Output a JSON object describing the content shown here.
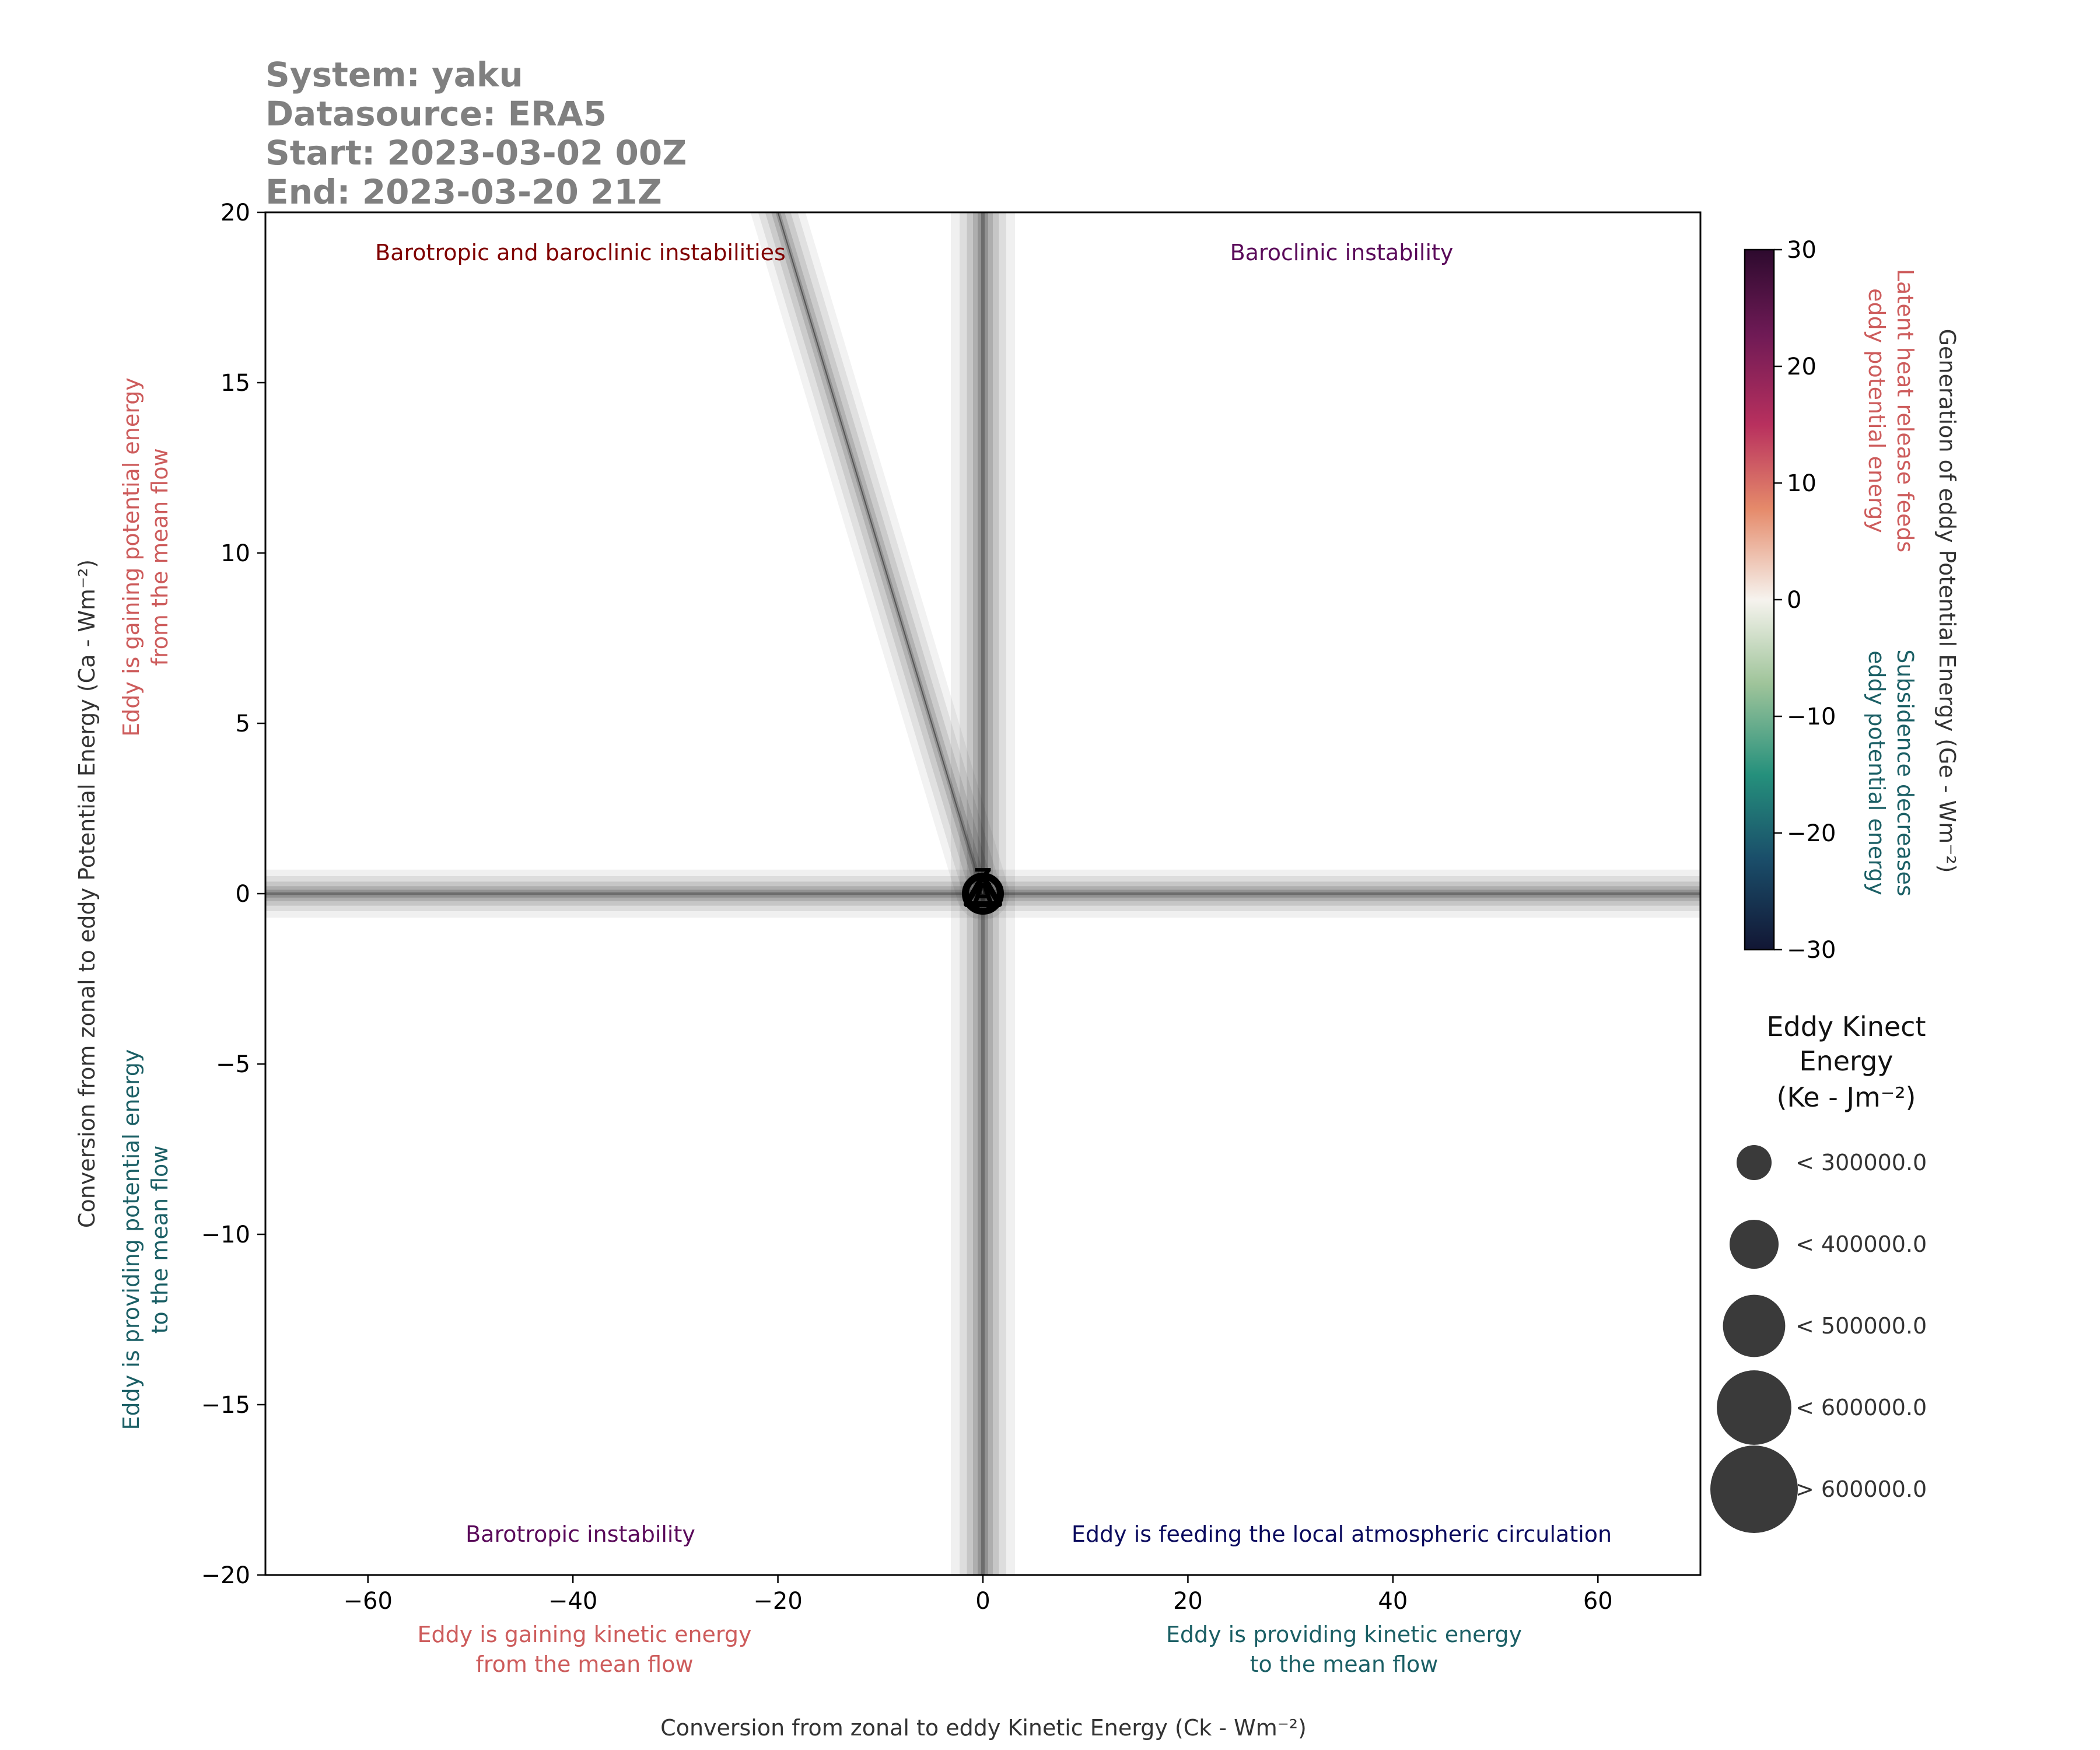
{
  "header": {
    "lines": [
      "System: yaku",
      "Datasource: ERA5",
      "Start: 2023-03-02 00Z",
      "End: 2023-03-20 21Z"
    ]
  },
  "quadrants": {
    "top_left": "Barotropic and baroclinic instabilities",
    "top_right": "Baroclinic instability",
    "bottom_left": "Barotropic instability",
    "bottom_right": "Eddy is feeding the local atmospheric circulation"
  },
  "axis_notes": {
    "x_left": [
      "Eddy is gaining kinetic energy",
      "from the mean flow"
    ],
    "x_right": [
      "Eddy is providing kinetic energy",
      "to the mean flow"
    ],
    "y_top": [
      "Eddy is gaining potential energy",
      "from the mean flow"
    ],
    "y_bottom": [
      "Eddy is providing potential energy",
      "to the mean flow"
    ],
    "cbar_top": [
      "Latent heat release feeds",
      "eddy potential energy"
    ],
    "cbar_bottom": [
      "Subsidence decreases",
      "eddy potential energy"
    ]
  },
  "colors": {
    "header": "#808080",
    "warm_note": "#cd5c5c",
    "cool_note": "#1b5f65",
    "baroclinic": "#5a0a5a",
    "barotropic_baroclinic": "#800000",
    "feeding": "#0b0b5e",
    "marker_fill": "#3a3a3a"
  },
  "chart_data": {
    "type": "scatter",
    "xlabel": "Conversion from zonal to eddy Kinetic Energy (Ck - Wm⁻²)",
    "ylabel": "Conversion from zonal to eddy Potential Energy (Ca - Wm⁻²)",
    "xlim": [
      -70,
      70
    ],
    "ylim": [
      -20,
      20
    ],
    "x_ticks": [
      -60,
      -40,
      -20,
      0,
      20,
      40,
      60
    ],
    "y_ticks": [
      -20,
      -15,
      -10,
      -5,
      0,
      5,
      10,
      15,
      20
    ],
    "x_tick_labels": [
      "−60",
      "−40",
      "−20",
      "0",
      "20",
      "40",
      "60"
    ],
    "y_tick_labels": [
      "−20",
      "−15",
      "−10",
      "−5",
      "0",
      "5",
      "10",
      "15",
      "20"
    ],
    "grid": false,
    "trajectory": [
      {
        "x": -20.5,
        "y": 20.5
      },
      {
        "x": 0,
        "y": 0
      }
    ],
    "markers": [
      {
        "label": "start",
        "shape": "circle",
        "x": 0,
        "y": 0
      },
      {
        "label": "end",
        "shape": "triangle",
        "x": 0,
        "y": 0
      }
    ],
    "start_marker_label": "A",
    "end_marker_label": "Z",
    "colorbar": {
      "label": "Generation of eddy Potential Energy (Ge - Wm⁻²)",
      "range": [
        -30,
        30
      ],
      "ticks": [
        30,
        20,
        10,
        0,
        -10,
        -20,
        -30
      ],
      "tick_labels": [
        "30",
        "20",
        "10",
        "0",
        "−10",
        "−20",
        "−30"
      ]
    },
    "size_legend": {
      "title_lines": [
        "Eddy Kinect",
        "Energy",
        "(Ke - Jm⁻²)"
      ],
      "entries": [
        "< 300000.0",
        "< 400000.0",
        "< 500000.0",
        "< 600000.0",
        "> 600000.0"
      ],
      "marker_sizes": [
        1,
        1.4,
        1.78,
        2.13,
        2.5
      ],
      "placement": "right"
    }
  }
}
